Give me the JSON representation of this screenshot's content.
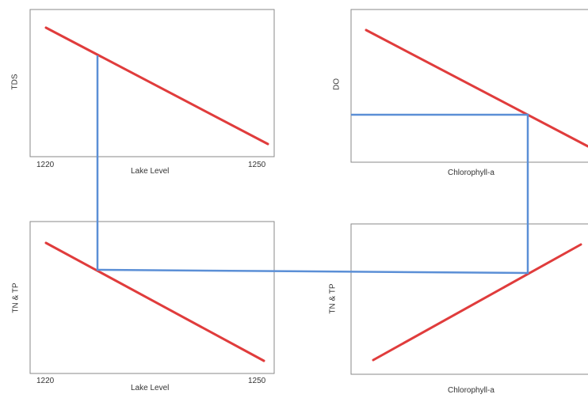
{
  "colors": {
    "frame": "#8a8a8a",
    "trend_line": "#e03c3c",
    "connector": "#5b8fd6",
    "text": "#333333"
  },
  "panels": [
    {
      "id": "top-left",
      "ylabel": "TDS",
      "xlabel": "Lake Level",
      "x_tick_start": "1220",
      "x_tick_end": "1250",
      "trend": "decreasing"
    },
    {
      "id": "top-right",
      "ylabel": "DO",
      "xlabel": "Chlorophyll-a",
      "trend": "decreasing"
    },
    {
      "id": "bottom-left",
      "ylabel": "TN & TP",
      "xlabel": "Lake Level",
      "x_tick_start": "1220",
      "x_tick_end": "1250",
      "trend": "decreasing"
    },
    {
      "id": "bottom-right",
      "ylabel": "TN & TP",
      "xlabel": "Chlorophyll-a",
      "trend": "increasing"
    }
  ]
}
